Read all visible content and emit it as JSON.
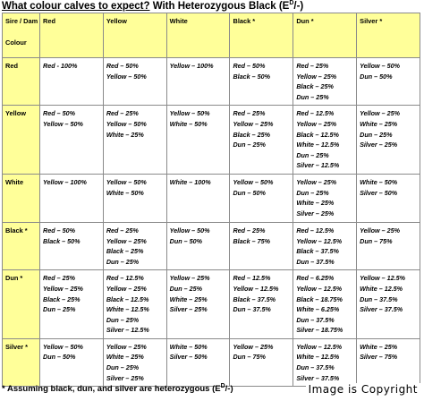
{
  "title": {
    "main": "What colour calves to expect?",
    "rest": " With Heterozygous Black (E",
    "sup": "D",
    "end": "/-)"
  },
  "table": {
    "corner": [
      "Sire / Dam",
      "Colour"
    ],
    "columns": [
      "Red",
      "Yellow",
      "White",
      "Black *",
      "Dun *",
      "Silver *"
    ],
    "rows": [
      {
        "label": "Red",
        "cells": [
          [
            "Red - 100%"
          ],
          [
            "Red – 50%",
            "Yellow – 50%"
          ],
          [
            "Yellow – 100%"
          ],
          [
            "Red – 50%",
            "Black – 50%"
          ],
          [
            "Red – 25%",
            "Yellow – 25%",
            "Black – 25%",
            "Dun – 25%"
          ],
          [
            "Yellow – 50%",
            "Dun – 50%"
          ]
        ]
      },
      {
        "label": "Yellow",
        "cells": [
          [
            "Red – 50%",
            "Yellow – 50%"
          ],
          [
            "Red – 25%",
            "Yellow – 50%",
            "White – 25%"
          ],
          [
            "Yellow – 50%",
            "White – 50%"
          ],
          [
            "Red – 25%",
            "Yellow – 25%",
            "Black – 25%",
            "Dun – 25%"
          ],
          [
            "Red – 12.5%",
            "Yellow – 25%",
            "Black – 12.5%",
            "White – 12.5%",
            "Dun – 25%",
            "Silver – 12.5%"
          ],
          [
            "Yellow – 25%",
            "White – 25%",
            "Dun – 25%",
            "Silver – 25%"
          ]
        ]
      },
      {
        "label": "White",
        "cells": [
          [
            "Yellow – 100%"
          ],
          [
            "Yellow – 50%",
            "White – 50%"
          ],
          [
            "White – 100%"
          ],
          [
            "Yellow – 50%",
            "Dun – 50%"
          ],
          [
            "Yellow – 25%",
            "Dun – 25%",
            "White – 25%",
            "Silver – 25%"
          ],
          [
            "White – 50%",
            "Silver – 50%"
          ]
        ]
      },
      {
        "label": "Black *",
        "cells": [
          [
            "Red – 50%",
            "Black – 50%"
          ],
          [
            "Red – 25%",
            "Yellow – 25%",
            "Black – 25%",
            "Dun – 25%"
          ],
          [
            "Yellow – 50%",
            "Dun – 50%"
          ],
          [
            "Red – 25%",
            "Black – 75%"
          ],
          [
            "Red – 12.5%",
            "Yellow – 12.5%",
            "Black – 37.5%",
            "Dun – 37.5%"
          ],
          [
            "Yellow – 25%",
            "Dun – 75%"
          ]
        ]
      },
      {
        "label": "Dun *",
        "cells": [
          [
            "Red – 25%",
            "Yellow – 25%",
            "Black – 25%",
            "Dun – 25%"
          ],
          [
            "Red – 12.5%",
            "Yellow – 25%",
            "Black – 12.5%",
            "White – 12.5%",
            "Dun – 25%",
            "Silver – 12.5%"
          ],
          [
            "Yellow – 25%",
            "Dun – 25%",
            "White – 25%",
            "Silver – 25%"
          ],
          [
            "Red – 12.5%",
            "Yellow – 12.5%",
            "Black – 37.5%",
            "Dun – 37.5%"
          ],
          [
            "Red – 6.25%",
            "Yellow – 12.5%",
            "Black – 18.75%",
            "White – 6.25%",
            "Dun – 37.5%",
            "Silver – 18.75%"
          ],
          [
            "Yellow – 12.5%",
            "White – 12.5%",
            "Dun – 37.5%",
            "Silver – 37.5%"
          ]
        ]
      },
      {
        "label": "Silver *",
        "cells": [
          [
            "Yellow – 50%",
            "Dun – 50%"
          ],
          [
            "Yellow – 25%",
            "White – 25%",
            "Dun – 25%",
            "Silver – 25%"
          ],
          [
            "White – 50%",
            "Silver – 50%"
          ],
          [
            "Yellow – 25%",
            "Dun – 75%"
          ],
          [
            "Yellow – 12.5%",
            "White – 12.5%",
            "Dun – 37.5%",
            "Silver – 37.5%"
          ],
          [
            "White – 25%",
            "Silver – 75%"
          ]
        ]
      }
    ]
  },
  "footnote": {
    "main": "* Assuming black, dun, and silver are heterozygous (E",
    "sup": "D",
    "end": "/-)"
  },
  "watermark": "Image is Copyright"
}
